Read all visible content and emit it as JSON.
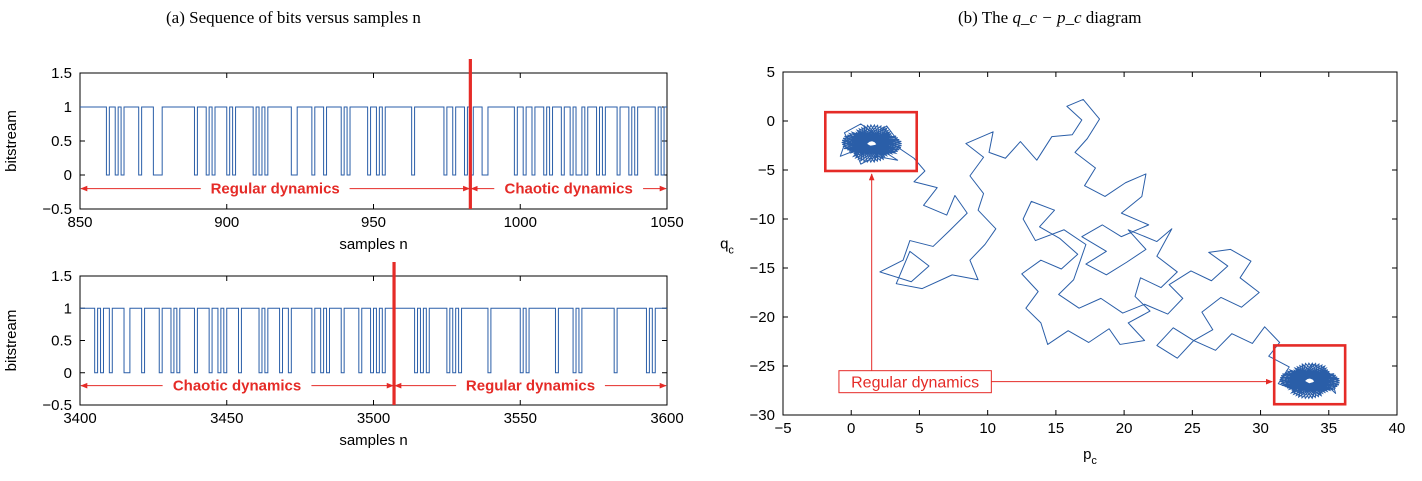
{
  "captions": {
    "a": "(a) Sequence of bits versus samples n",
    "b_prefix": "(b) The ",
    "b_formula": "q_c − p_c",
    "b_suffix": " diagram"
  },
  "colors": {
    "series": "#2a5ea8",
    "annotation": "#e52b27",
    "axis": "#000000"
  },
  "chart_data": [
    {
      "type": "line",
      "step": true,
      "title": "",
      "xlabel": "samples n",
      "ylabel": "bitstream",
      "xlim": [
        850,
        1050
      ],
      "ylim": [
        -0.5,
        1.5
      ],
      "xticks": [
        850,
        900,
        950,
        1000,
        1050
      ],
      "yticks": [
        -0.5,
        0,
        0.5,
        1,
        1.5
      ],
      "grid": false,
      "x_start": 850,
      "bits": [
        1,
        1,
        1,
        1,
        1,
        1,
        1,
        1,
        1,
        0,
        1,
        1,
        0,
        1,
        0,
        1,
        1,
        1,
        1,
        1,
        0,
        1,
        1,
        1,
        1,
        0,
        0,
        0,
        1,
        1,
        1,
        1,
        1,
        1,
        1,
        1,
        1,
        1,
        1,
        0,
        1,
        1,
        1,
        0,
        1,
        0,
        1,
        1,
        1,
        1,
        0,
        1,
        0,
        1,
        1,
        1,
        1,
        1,
        1,
        0,
        1,
        0,
        1,
        0,
        1,
        1,
        1,
        1,
        1,
        1,
        1,
        1,
        0,
        0,
        1,
        1,
        1,
        1,
        1,
        0,
        1,
        1,
        1,
        0,
        1,
        1,
        1,
        1,
        1,
        0,
        1,
        0,
        1,
        1,
        1,
        1,
        1,
        1,
        0,
        1,
        1,
        0,
        1,
        0,
        1,
        1,
        1,
        1,
        1,
        1,
        1,
        1,
        1,
        0,
        1,
        1,
        1,
        1,
        1,
        1,
        1,
        1,
        1,
        1,
        0,
        1,
        1,
        0,
        1,
        1,
        1,
        0,
        1,
        0,
        1,
        1,
        1,
        0,
        0,
        1,
        1,
        1,
        1,
        1,
        1,
        1,
        1,
        1,
        0,
        1,
        1,
        0,
        1,
        1,
        0,
        1,
        1,
        1,
        0,
        1,
        0,
        1,
        1,
        1,
        0,
        1,
        1,
        0,
        1,
        0,
        0,
        1,
        0,
        1,
        1,
        1,
        0,
        1,
        0,
        1,
        1,
        1,
        1,
        0,
        1,
        1,
        1,
        0,
        1,
        0,
        1,
        1,
        1,
        1,
        1,
        1,
        0,
        1,
        0,
        1
      ],
      "transition_x": 983,
      "annotations": [
        {
          "text": "Regular dynamics",
          "x_from": 850,
          "x_to": 983,
          "y": -0.2
        },
        {
          "text": "Chaotic dynamics",
          "x_from": 983,
          "x_to": 1050,
          "y": -0.2
        }
      ]
    },
    {
      "type": "line",
      "step": true,
      "title": "",
      "xlabel": "samples n",
      "ylabel": "bitstream",
      "xlim": [
        3400,
        3600
      ],
      "ylim": [
        -0.5,
        1.5
      ],
      "xticks": [
        3400,
        3450,
        3500,
        3550,
        3600
      ],
      "yticks": [
        -0.5,
        0,
        0.5,
        1,
        1.5
      ],
      "grid": false,
      "x_start": 3400,
      "bits": [
        1,
        1,
        1,
        1,
        1,
        0,
        1,
        0,
        1,
        1,
        0,
        1,
        1,
        1,
        1,
        0,
        0,
        1,
        1,
        1,
        1,
        0,
        1,
        1,
        1,
        1,
        1,
        0,
        1,
        1,
        1,
        0,
        1,
        0,
        1,
        1,
        1,
        1,
        1,
        0,
        1,
        1,
        1,
        1,
        0,
        1,
        1,
        0,
        1,
        0,
        1,
        1,
        1,
        1,
        0,
        1,
        1,
        1,
        1,
        1,
        1,
        0,
        1,
        0,
        1,
        1,
        1,
        1,
        0,
        1,
        1,
        0,
        1,
        1,
        1,
        1,
        1,
        1,
        1,
        0,
        1,
        1,
        0,
        1,
        0,
        1,
        1,
        1,
        1,
        0,
        1,
        1,
        1,
        1,
        1,
        0,
        1,
        1,
        1,
        0,
        1,
        0,
        1,
        0,
        1,
        1,
        1,
        1,
        1,
        1,
        1,
        1,
        1,
        1,
        0,
        1,
        0,
        1,
        0,
        1,
        1,
        1,
        1,
        1,
        1,
        0,
        1,
        0,
        1,
        0,
        1,
        1,
        1,
        1,
        1,
        1,
        1,
        1,
        1,
        0,
        1,
        1,
        1,
        1,
        1,
        1,
        1,
        1,
        1,
        1,
        0,
        1,
        0,
        1,
        1,
        1,
        1,
        1,
        1,
        1,
        1,
        1,
        0,
        1,
        1,
        1,
        1,
        1,
        0,
        1,
        0,
        1,
        1,
        1,
        1,
        1,
        1,
        1,
        1,
        1,
        1,
        1,
        0,
        1,
        1,
        1,
        1,
        1,
        1,
        1,
        1,
        1,
        1,
        0,
        1,
        0,
        1,
        1,
        1,
        1
      ],
      "transition_x": 3507,
      "annotations": [
        {
          "text": "Chaotic dynamics",
          "x_from": 3400,
          "x_to": 3507,
          "y": -0.2
        },
        {
          "text": "Regular dynamics",
          "x_from": 3507,
          "x_to": 3600,
          "y": -0.2
        }
      ]
    },
    {
      "type": "line",
      "title": "",
      "xlabel": "p_c",
      "ylabel": "q_c",
      "xlim": [
        -5,
        40
      ],
      "ylim": [
        -30,
        5
      ],
      "xticks": [
        -5,
        0,
        5,
        10,
        15,
        20,
        25,
        30,
        35,
        40
      ],
      "yticks": [
        5,
        0,
        -5,
        -10,
        -15,
        -20,
        -25,
        -30
      ],
      "grid": false,
      "path": [
        [
          0,
          -2.6
        ],
        [
          -0.5,
          -1.2
        ],
        [
          0.7,
          -0.3
        ],
        [
          1.8,
          -1.4
        ],
        [
          2.6,
          -0.5
        ],
        [
          3.3,
          -1.8
        ],
        [
          2.5,
          -3.2
        ],
        [
          3.4,
          -4
        ],
        [
          1.8,
          -3.6
        ],
        [
          0.7,
          -4.4
        ],
        [
          0.3,
          -3
        ],
        [
          -0.8,
          -3.6
        ],
        [
          -0.4,
          -2
        ],
        [
          1.3,
          -2.6
        ],
        [
          2.9,
          -2.2
        ],
        [
          4.6,
          -3.8
        ],
        [
          5.4,
          -5.1
        ],
        [
          4.6,
          -6.2
        ],
        [
          6.3,
          -6.8
        ],
        [
          5.3,
          -8.6
        ],
        [
          7,
          -9.6
        ],
        [
          7.6,
          -7.6
        ],
        [
          8.5,
          -9.4
        ],
        [
          7.2,
          -11.2
        ],
        [
          6,
          -12.8
        ],
        [
          4.3,
          -12.2
        ],
        [
          3.8,
          -14.2
        ],
        [
          2.1,
          -15.4
        ],
        [
          4.4,
          -16.4
        ],
        [
          5.7,
          -14.8
        ],
        [
          4.3,
          -13.3
        ],
        [
          3.3,
          -16.6
        ],
        [
          5.2,
          -17.1
        ],
        [
          7.4,
          -15.7
        ],
        [
          9.3,
          -16.2
        ],
        [
          8.7,
          -14.2
        ],
        [
          9.8,
          -12.6
        ],
        [
          10.6,
          -11
        ],
        [
          9.3,
          -9.1
        ],
        [
          9.7,
          -7.4
        ],
        [
          8.7,
          -5.6
        ],
        [
          9.7,
          -3.7
        ],
        [
          8.4,
          -2.3
        ],
        [
          10.4,
          -1.1
        ],
        [
          10.1,
          -3.2
        ],
        [
          11.3,
          -3.8
        ],
        [
          12.4,
          -2.1
        ],
        [
          13.6,
          -4
        ],
        [
          14.7,
          -1.6
        ],
        [
          16.2,
          -1.4
        ],
        [
          16.9,
          0.1
        ],
        [
          15.8,
          1.5
        ],
        [
          17,
          2.2
        ],
        [
          18.2,
          0.2
        ],
        [
          17.3,
          -1.8
        ],
        [
          16.4,
          -3.2
        ],
        [
          17.9,
          -4.8
        ],
        [
          17.1,
          -6.6
        ],
        [
          18.6,
          -7.7
        ],
        [
          20.1,
          -6.3
        ],
        [
          21.6,
          -5.4
        ],
        [
          21.3,
          -7.7
        ],
        [
          19.8,
          -9.4
        ],
        [
          21.8,
          -10.6
        ],
        [
          19.8,
          -11.8
        ],
        [
          18.4,
          -10.6
        ],
        [
          16.9,
          -11.8
        ],
        [
          18.7,
          -13.3
        ],
        [
          17.2,
          -14.6
        ],
        [
          18.7,
          -15.7
        ],
        [
          20.2,
          -14.4
        ],
        [
          21.6,
          -13.1
        ],
        [
          20.3,
          -11.1
        ],
        [
          22.4,
          -12.3
        ],
        [
          23.5,
          -11
        ],
        [
          22.4,
          -13.8
        ],
        [
          23.9,
          -15.4
        ],
        [
          22.7,
          -17
        ],
        [
          21.2,
          -16
        ],
        [
          20.8,
          -17.9
        ],
        [
          21.9,
          -19.4
        ],
        [
          20.3,
          -20.6
        ],
        [
          21.5,
          -22.4
        ],
        [
          19.7,
          -22.8
        ],
        [
          18.9,
          -21.2
        ],
        [
          17.4,
          -22.6
        ],
        [
          15.9,
          -21.4
        ],
        [
          14.4,
          -22.8
        ],
        [
          13.9,
          -20.6
        ],
        [
          12.8,
          -19.1
        ],
        [
          13.7,
          -17.4
        ],
        [
          12.5,
          -15.6
        ],
        [
          13.9,
          -14.2
        ],
        [
          15.4,
          -15.1
        ],
        [
          16.6,
          -13.6
        ],
        [
          15.3,
          -12
        ],
        [
          13.8,
          -10.8
        ],
        [
          14.9,
          -9.1
        ],
        [
          13.2,
          -8.2
        ],
        [
          12.6,
          -10
        ],
        [
          13.5,
          -12.2
        ],
        [
          15.6,
          -11.1
        ],
        [
          17.2,
          -12.6
        ],
        [
          16.3,
          -16.2
        ],
        [
          15.2,
          -17.7
        ],
        [
          16.7,
          -19.1
        ],
        [
          18.3,
          -18.1
        ],
        [
          19.9,
          -19.6
        ],
        [
          21.5,
          -18.7
        ],
        [
          23.2,
          -19.7
        ],
        [
          24.3,
          -18.1
        ],
        [
          23.3,
          -16.7
        ],
        [
          24.9,
          -15.3
        ],
        [
          26.4,
          -16.3
        ],
        [
          27.6,
          -14.8
        ],
        [
          26.2,
          -13.4
        ],
        [
          27.8,
          -13.1
        ],
        [
          29.3,
          -14.3
        ],
        [
          28.5,
          -16
        ],
        [
          29.9,
          -17.5
        ],
        [
          28.6,
          -19
        ],
        [
          27.1,
          -18
        ],
        [
          25.7,
          -19.5
        ],
        [
          26.5,
          -21.3
        ],
        [
          25.1,
          -22.4
        ],
        [
          23.6,
          -21.1
        ],
        [
          22.4,
          -22.9
        ],
        [
          23.9,
          -24.2
        ],
        [
          25.1,
          -22.4
        ],
        [
          26.7,
          -23.4
        ],
        [
          27.9,
          -21.7
        ],
        [
          29.4,
          -22.7
        ],
        [
          30.3,
          -21
        ],
        [
          31.4,
          -22.6
        ],
        [
          30.6,
          -24
        ],
        [
          32.1,
          -25.1
        ],
        [
          31.3,
          -26.8
        ],
        [
          33.2,
          -27.8
        ],
        [
          34.5,
          -26.5
        ],
        [
          35.5,
          -27.8
        ],
        [
          35.1,
          -25.8
        ],
        [
          33.8,
          -24.8
        ],
        [
          33.2,
          -26.5
        ],
        [
          32.1,
          -27.2
        ],
        [
          34.4,
          -27.2
        ],
        [
          35,
          -26
        ]
      ],
      "clusters": [
        {
          "cx": 1.5,
          "cy": -2.3,
          "rx": 2.2,
          "ry": 1.9
        },
        {
          "cx": 33.6,
          "cy": -26.5,
          "rx": 2.2,
          "ry": 1.8
        }
      ],
      "boxes": [
        {
          "x0": -1.9,
          "y0": 0.9,
          "x1": 4.8,
          "y1": -5.1
        },
        {
          "x0": 31,
          "y0": -22.9,
          "x1": 36.2,
          "y1": -28.9
        }
      ],
      "annotation": {
        "text": "Regular dynamics",
        "at": [
          -0.9,
          -26.6
        ],
        "targets": [
          [
            1.5,
            -5.1
          ],
          [
            31,
            -26.6
          ]
        ]
      }
    }
  ]
}
